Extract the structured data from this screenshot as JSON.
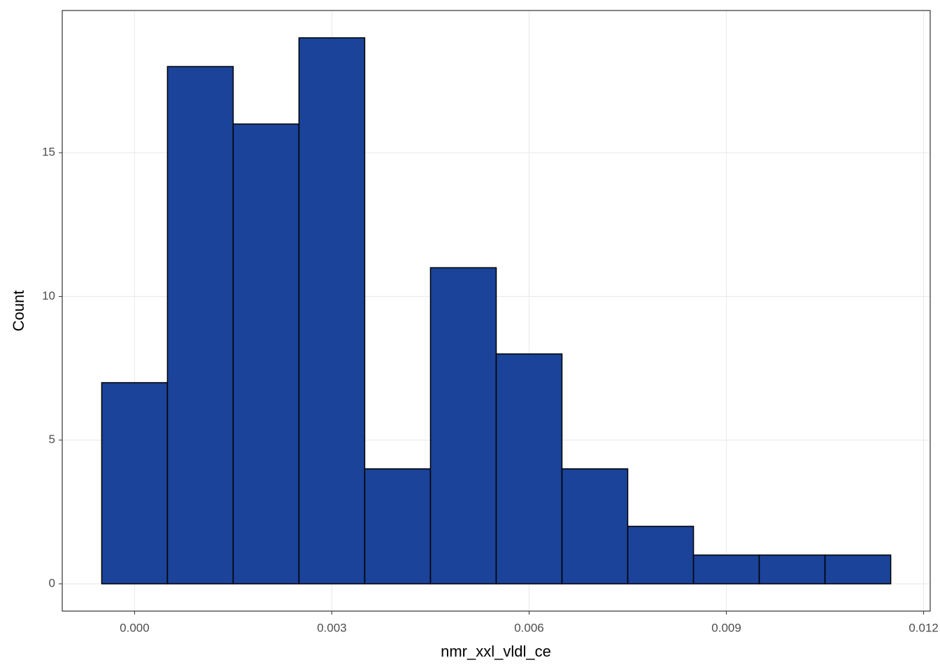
{
  "chart_data": {
    "type": "histogram",
    "x_label": "nmr_xxl_vldl_ce",
    "y_label": "Count",
    "bins": [
      -0.0005,
      0.0005,
      0.0015,
      0.0025,
      0.0035,
      0.0045,
      0.0055,
      0.0065,
      0.0075,
      0.0085,
      0.0095,
      0.0105,
      0.0115
    ],
    "values": [
      7,
      18,
      16,
      19,
      4,
      11,
      8,
      4,
      2,
      1,
      1,
      1
    ],
    "color": "#1a4399",
    "edge_color": "#000000",
    "xlim": [
      -0.0011,
      0.0121
    ],
    "ylim": [
      -0.95,
      19.95
    ],
    "xticks": [
      {
        "value": 0,
        "label": "0.000"
      },
      {
        "value": 0.003,
        "label": "0.003"
      },
      {
        "value": 0.006,
        "label": "0.006"
      },
      {
        "value": 0.009,
        "label": "0.009"
      },
      {
        "value": 0.012,
        "label": "0.012"
      }
    ],
    "yticks": [
      0,
      5,
      10,
      15
    ],
    "grid": true
  }
}
